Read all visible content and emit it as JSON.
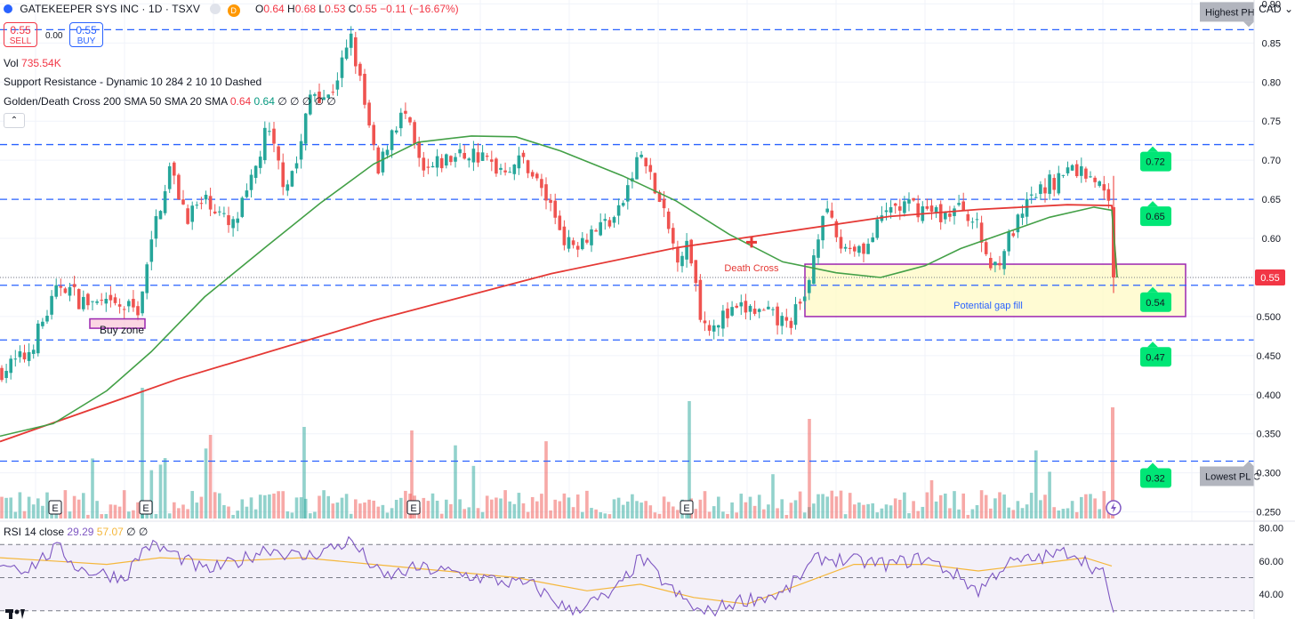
{
  "header": {
    "symbol": "GATEKEEPER SYS INC · 1D · TSXV",
    "open_label": "O",
    "open": "0.64",
    "high_label": "H",
    "high": "0.68",
    "low_label": "L",
    "low": "0.53",
    "close_label": "C",
    "close": "0.55",
    "change": "−0.11 (−16.67%)",
    "badge": "D"
  },
  "trade": {
    "sell_price": "0.55",
    "sell_label": "SELL",
    "spread": "0.00",
    "buy_price": "0.55",
    "buy_label": "BUY"
  },
  "indicators": {
    "vol_label": "Vol",
    "vol_value": "735.54K",
    "sr_label": "Support Resistance - Dynamic 10 284 2 10 10 Dashed",
    "gdc_label": "Golden/Death Cross 200 SMA 50 SMA 20 SMA",
    "gdc_v1": "0.64",
    "gdc_v2": "0.64",
    "gdc_rest": "∅ ∅ ∅ ∅ ∅",
    "collapse_icon": "chevron-up-icon"
  },
  "currency": "CAD",
  "rsi": {
    "label": "RSI 14 close",
    "value": "29.29",
    "ma": "57.07",
    "rest": "∅ ∅"
  },
  "colors": {
    "up": "#26a69a",
    "down": "#ef5350",
    "sma200": "#e53935",
    "sma50": "#43a047",
    "rsi": "#7e57c2",
    "rsi_ma": "#f5b73b",
    "sr_line": "#2962ff",
    "zone": "#9c27b0",
    "zone_fill": "#fff9c4",
    "badge_green": "#00e676"
  },
  "chart_data": {
    "type": "candlestick",
    "ylim": [
      0.245,
      0.905
    ],
    "y_ticks": [
      "0.90",
      "0.85",
      "0.80",
      "0.75",
      "0.70",
      "0.65",
      "0.60",
      "0.550",
      "0.500",
      "0.450",
      "0.400",
      "0.350",
      "0.300",
      "0.250"
    ],
    "last_price": "0.55",
    "support_resistance": [
      0.867,
      0.72,
      0.65,
      0.54,
      0.47,
      0.315
    ],
    "sr_badges": [
      {
        "value": "0.72",
        "level": 0.72
      },
      {
        "value": "0.65",
        "level": 0.65
      },
      {
        "value": "0.54",
        "level": 0.54
      },
      {
        "value": "0.47",
        "level": 0.47
      },
      {
        "value": "0.32",
        "level": 0.315
      }
    ],
    "pivot_labels": [
      {
        "text": "Highest PH",
        "level": 0.867
      },
      {
        "text": "Lowest PL C",
        "level": 0.315
      }
    ],
    "annotations": {
      "death_cross": "Death Cross",
      "gap_fill": "Potential gap fill",
      "buy_zone": "Buy zone"
    },
    "gap_zone": [
      0.5,
      0.567
    ],
    "buy_zone": [
      0.485,
      0.497
    ],
    "earnings_marker": "E",
    "sma200_path": [
      [
        0,
        0.34
      ],
      [
        200,
        0.42
      ],
      [
        420,
        0.495
      ],
      [
        620,
        0.555
      ],
      [
        760,
        0.588
      ],
      [
        880,
        0.608
      ],
      [
        1000,
        0.628
      ],
      [
        1100,
        0.637
      ],
      [
        1200,
        0.643
      ],
      [
        1250,
        0.642
      ],
      [
        1256,
        0.55
      ]
    ],
    "sma50_path": [
      [
        0,
        0.347
      ],
      [
        60,
        0.363
      ],
      [
        120,
        0.405
      ],
      [
        170,
        0.455
      ],
      [
        230,
        0.525
      ],
      [
        300,
        0.59
      ],
      [
        360,
        0.645
      ],
      [
        420,
        0.695
      ],
      [
        470,
        0.723
      ],
      [
        530,
        0.731
      ],
      [
        580,
        0.73
      ],
      [
        630,
        0.712
      ],
      [
        700,
        0.68
      ],
      [
        760,
        0.648
      ],
      [
        820,
        0.605
      ],
      [
        880,
        0.57
      ],
      [
        940,
        0.556
      ],
      [
        990,
        0.55
      ],
      [
        1040,
        0.565
      ],
      [
        1080,
        0.587
      ],
      [
        1130,
        0.607
      ],
      [
        1180,
        0.627
      ],
      [
        1230,
        0.64
      ],
      [
        1250,
        0.636
      ],
      [
        1256,
        0.55
      ]
    ],
    "rsi": {
      "levels": [
        "80.00",
        "60.00",
        "40.00"
      ],
      "ylim": [
        25,
        83
      ],
      "value": 29.29
    }
  }
}
